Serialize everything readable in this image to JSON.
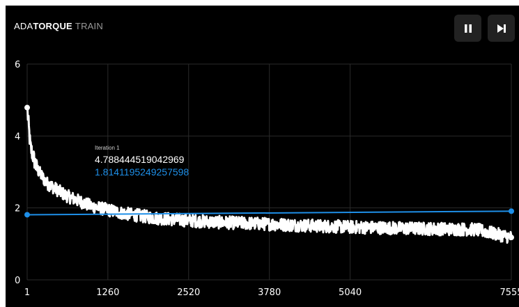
{
  "header": {
    "title_part1": "ADA",
    "title_part2": "TORQUE",
    "title_part3": "TRAIN"
  },
  "controls": {
    "pause_icon": "pause-icon",
    "step_icon": "skip-forward-icon"
  },
  "tooltip": {
    "label": "Iteration 1",
    "value_white": "4.788444519042969",
    "value_blue": "1.8141195249257598"
  },
  "colors": {
    "background": "#000000",
    "train_series": "#ffffff",
    "eval_series": "#1e8fe8",
    "grid": "#2a2a2a",
    "button_bg": "#222222"
  },
  "chart_data": {
    "type": "line",
    "x_ticks": [
      "1",
      "1260",
      "2520",
      "3780",
      "5040",
      "7555"
    ],
    "y_ticks": [
      "0",
      "2",
      "4",
      "6"
    ],
    "xlim": [
      1,
      7555
    ],
    "ylim": [
      0,
      6
    ],
    "grid": true,
    "series": [
      {
        "color": "#ffffff",
        "style": "noisy-decay",
        "x": [
          1,
          50,
          150,
          300,
          600,
          1000,
          1500,
          2000,
          2520,
          3000,
          3780,
          4500,
          5040,
          6000,
          7000,
          7555
        ],
        "y": [
          4.79,
          3.7,
          3.1,
          2.7,
          2.35,
          2.05,
          1.85,
          1.72,
          1.65,
          1.6,
          1.55,
          1.5,
          1.47,
          1.43,
          1.4,
          1.18
        ],
        "noise": 0.18
      },
      {
        "color": "#1e8fe8",
        "style": "markers-line",
        "x": [
          1,
          7555
        ],
        "y": [
          1.81,
          1.91
        ]
      }
    ]
  }
}
